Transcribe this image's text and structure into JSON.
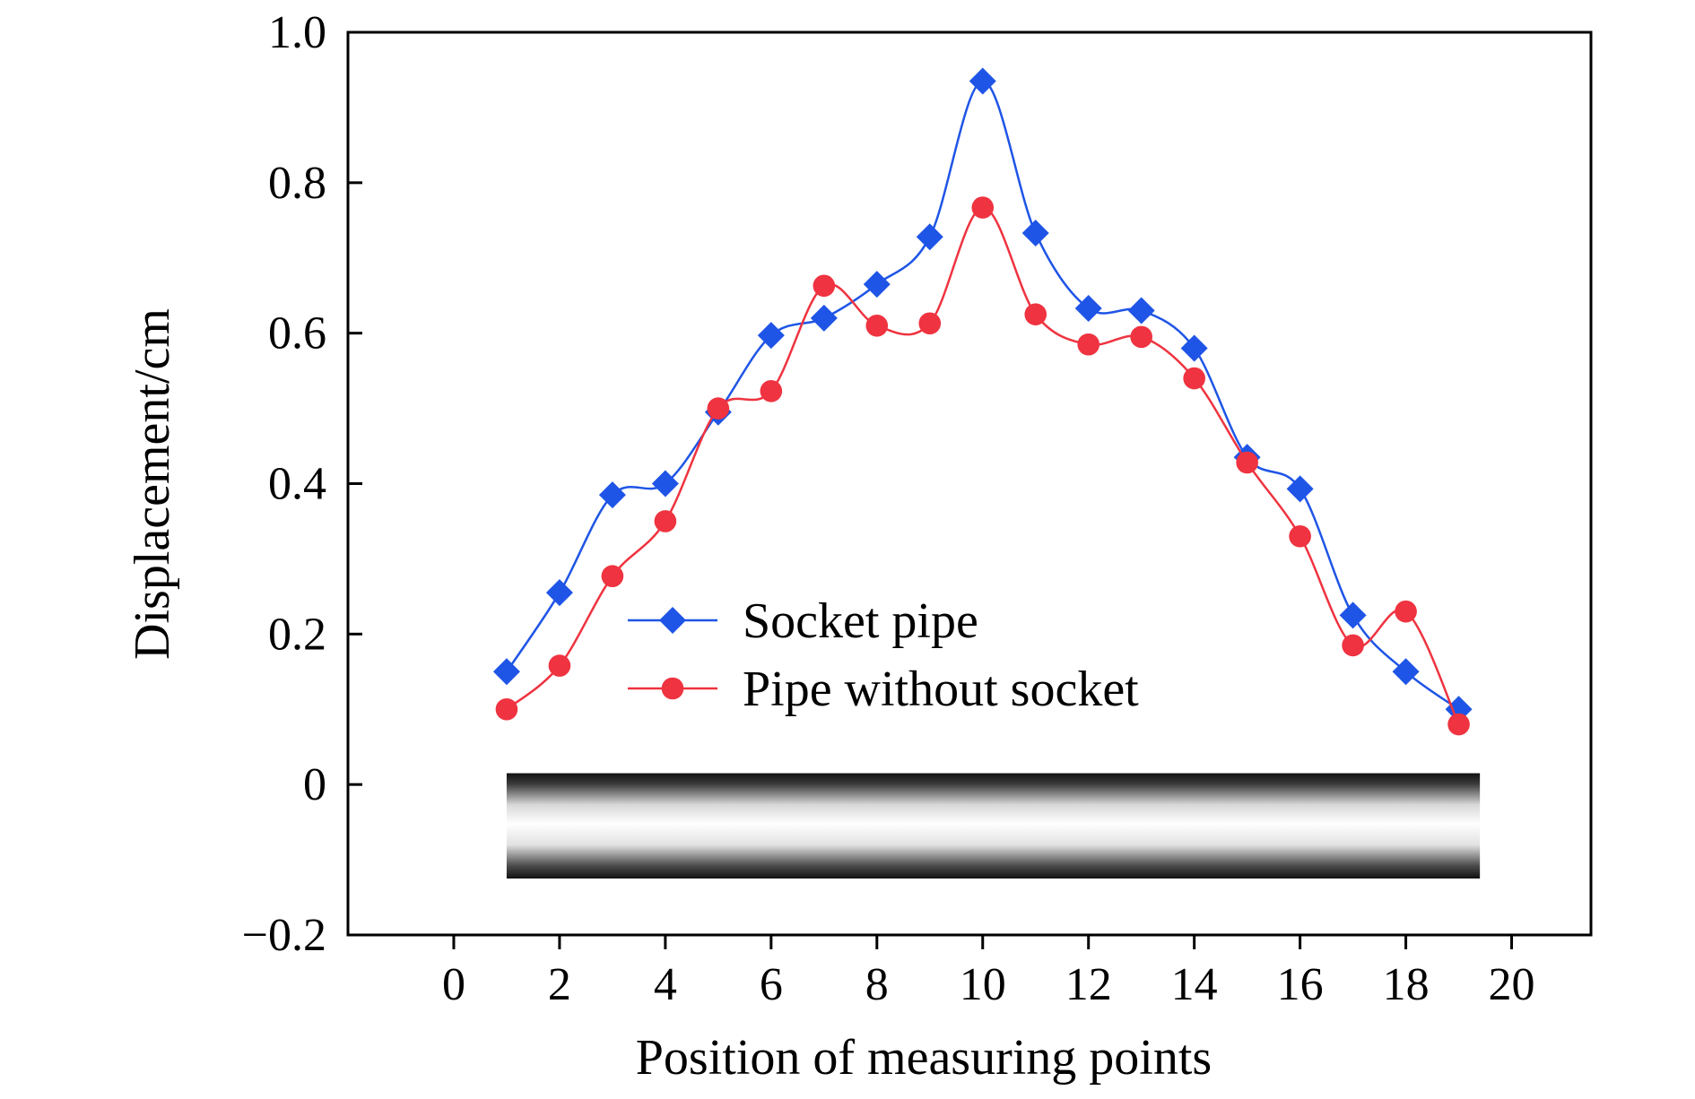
{
  "chart_data": {
    "type": "line",
    "title": "",
    "xlabel": "Position of measuring points",
    "ylabel": "Displacement/cm",
    "xlim": [
      -2,
      21.5
    ],
    "ylim": [
      -0.2,
      1.0
    ],
    "xticks": [
      0,
      2,
      4,
      6,
      8,
      10,
      12,
      14,
      16,
      18,
      20
    ],
    "yticks": [
      -0.2,
      0,
      0.2,
      0.4,
      0.6,
      0.8,
      1.0
    ],
    "xtick_labels": [
      "0",
      "2",
      "4",
      "6",
      "8",
      "10",
      "12",
      "14",
      "16",
      "18",
      "20"
    ],
    "ytick_labels": [
      "−0.2",
      "0",
      "0.2",
      "0.4",
      "0.6",
      "0.8",
      "1.0"
    ],
    "grid": false,
    "legend_position": "center",
    "x": [
      1,
      2,
      3,
      4,
      5,
      6,
      7,
      8,
      9,
      10,
      11,
      12,
      13,
      14,
      15,
      16,
      17,
      18,
      19
    ],
    "series": [
      {
        "name": "Socket pipe",
        "color": "#1f55e6",
        "marker": "diamond",
        "values": [
          0.15,
          0.255,
          0.385,
          0.4,
          0.495,
          0.597,
          0.62,
          0.665,
          0.728,
          0.935,
          0.733,
          0.633,
          0.63,
          0.58,
          0.435,
          0.393,
          0.225,
          0.15,
          0.1
        ]
      },
      {
        "name": "Pipe without socket",
        "color": "#ef3340",
        "marker": "circle",
        "values": [
          0.1,
          0.158,
          0.277,
          0.35,
          0.5,
          0.523,
          0.663,
          0.61,
          0.613,
          0.767,
          0.625,
          0.585,
          0.595,
          0.54,
          0.428,
          0.33,
          0.185,
          0.23,
          0.08
        ]
      }
    ],
    "pipe_illustration": {
      "x_range": [
        1,
        19.4
      ],
      "y_range": [
        -0.125,
        0.015
      ]
    }
  }
}
